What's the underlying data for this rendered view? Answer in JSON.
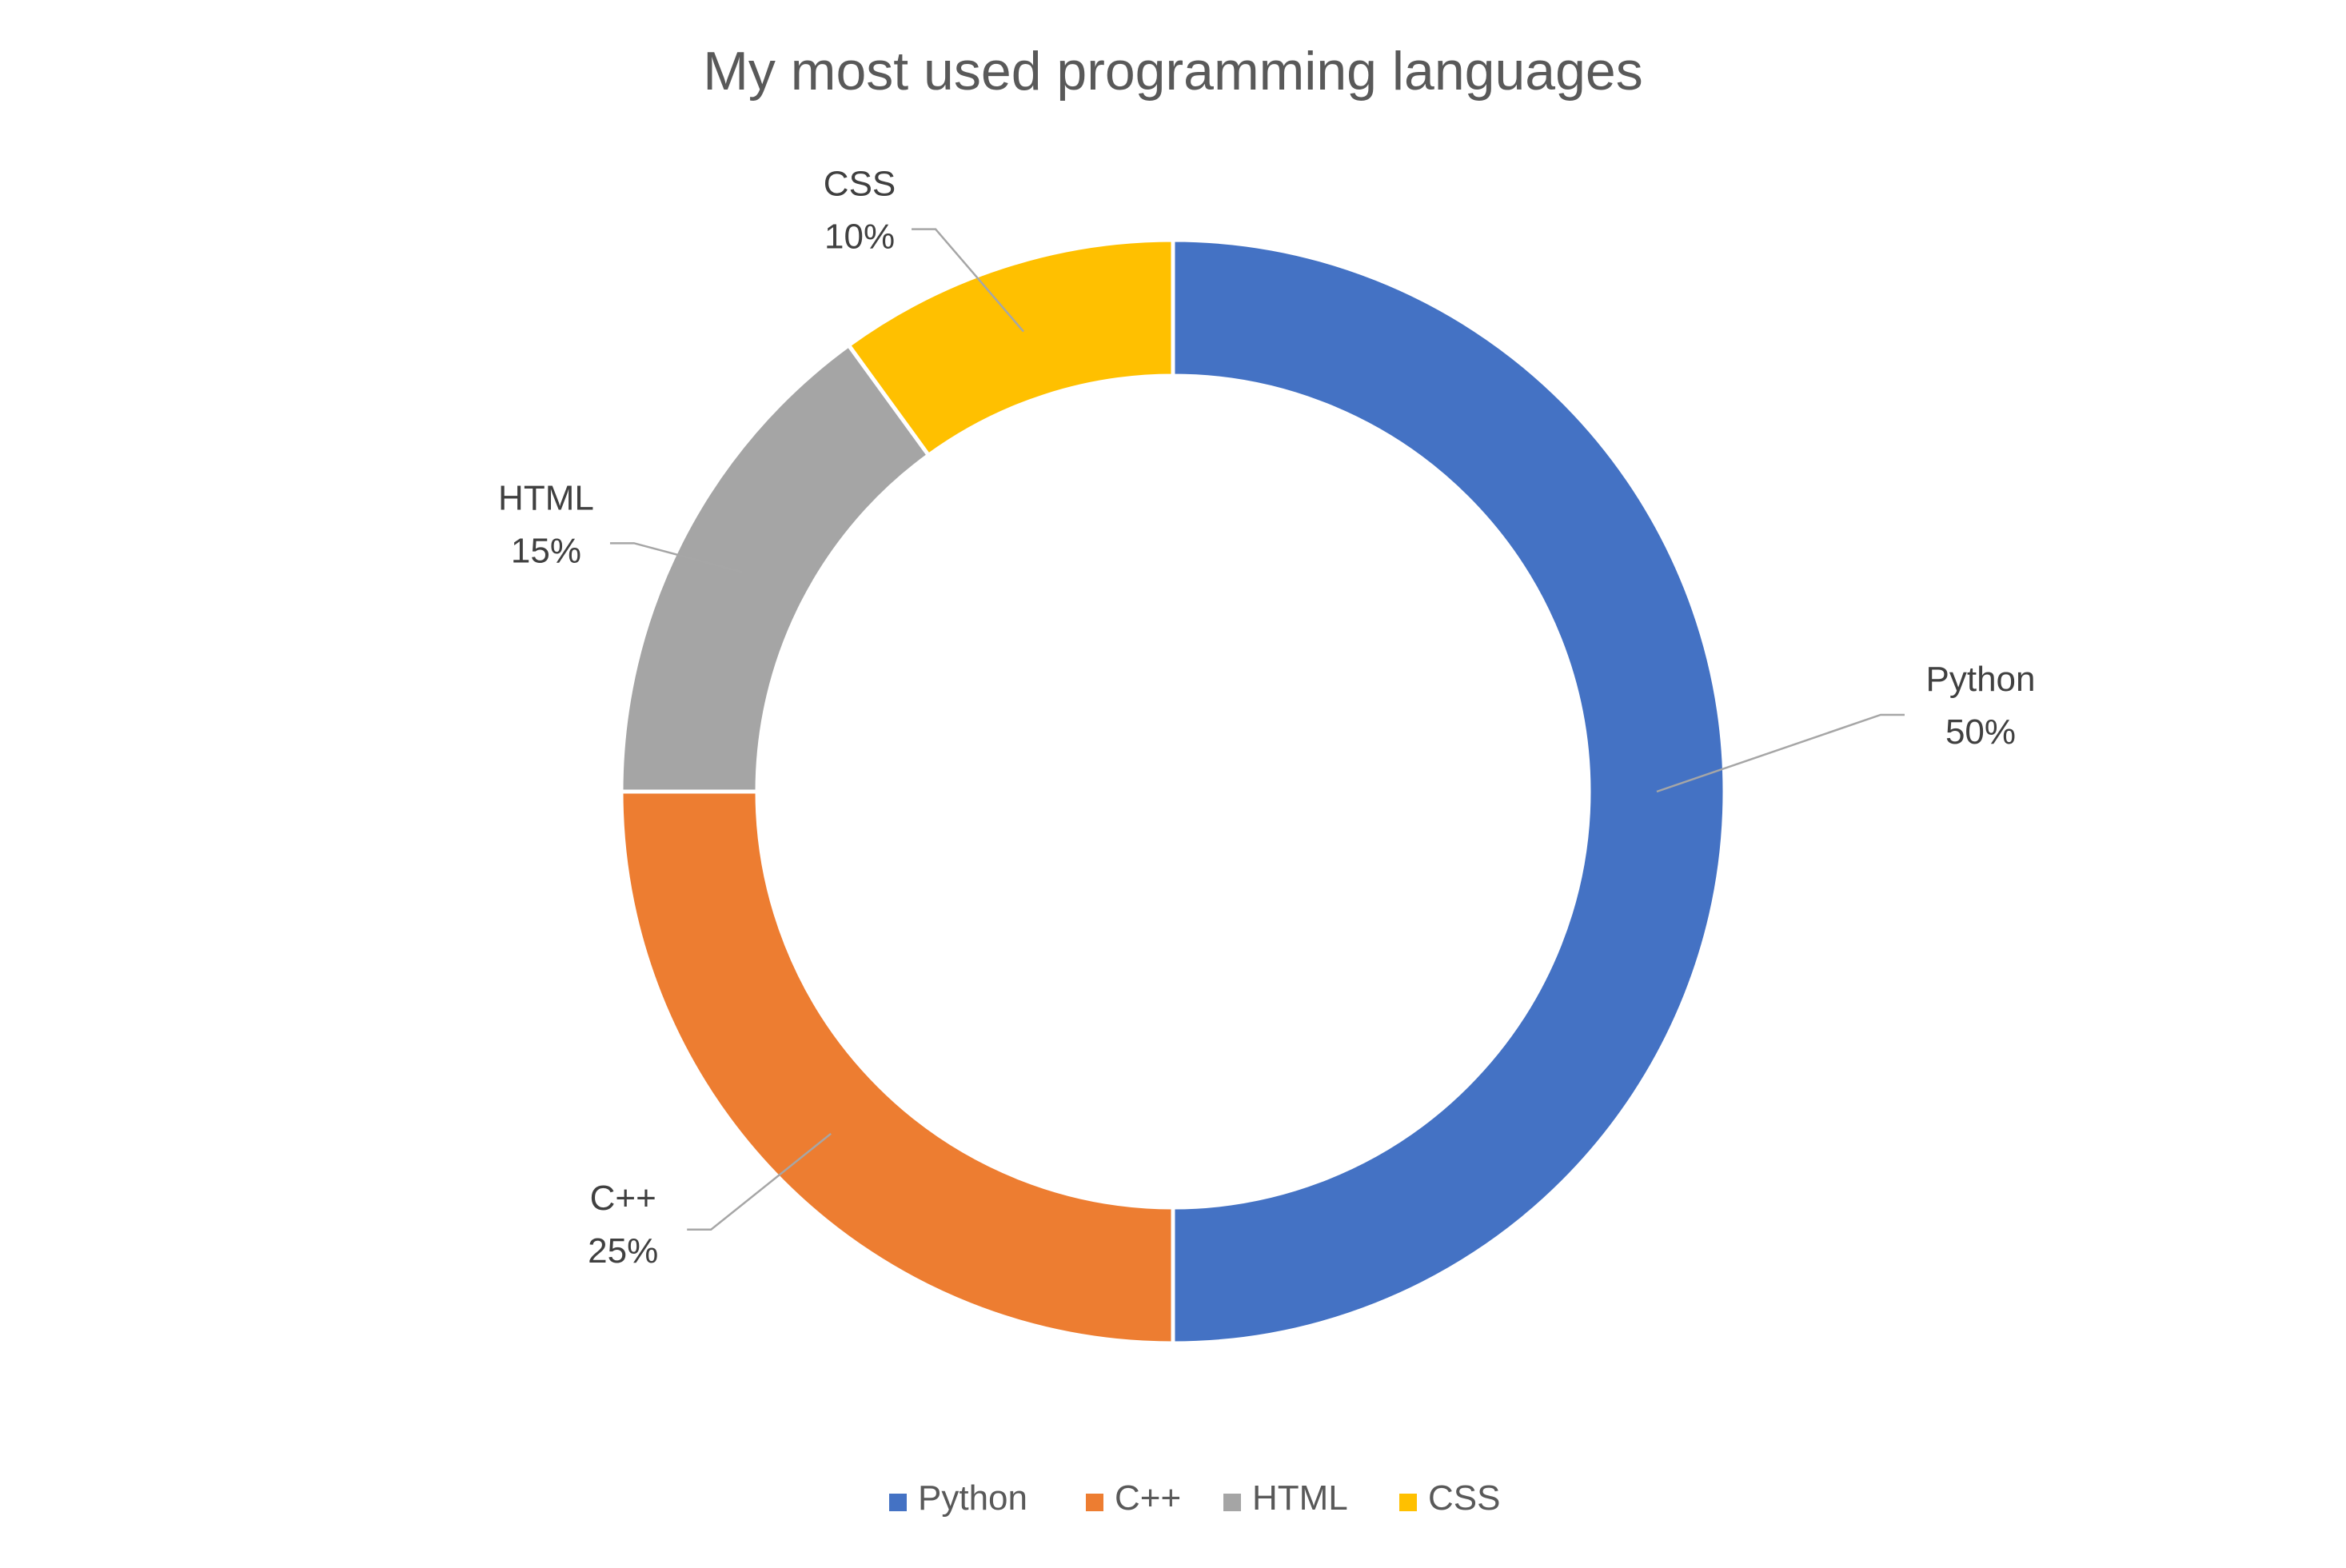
{
  "chart_data": {
    "type": "pie",
    "variant": "doughnut",
    "title": "My most used programming languages",
    "categories": [
      "Python",
      "C++",
      "HTML",
      "CSS"
    ],
    "values": [
      50,
      25,
      15,
      10
    ],
    "value_labels": [
      "50%",
      "25%",
      "15%",
      "10%"
    ],
    "colors": [
      "#4472C4",
      "#ED7D31",
      "#A5A5A5",
      "#FFC000"
    ],
    "legend": {
      "position": "bottom",
      "entries": [
        "Python",
        "C++",
        "HTML",
        "CSS"
      ]
    },
    "data_labels": {
      "show_category": true,
      "show_percent": true,
      "leader_lines": true
    }
  }
}
